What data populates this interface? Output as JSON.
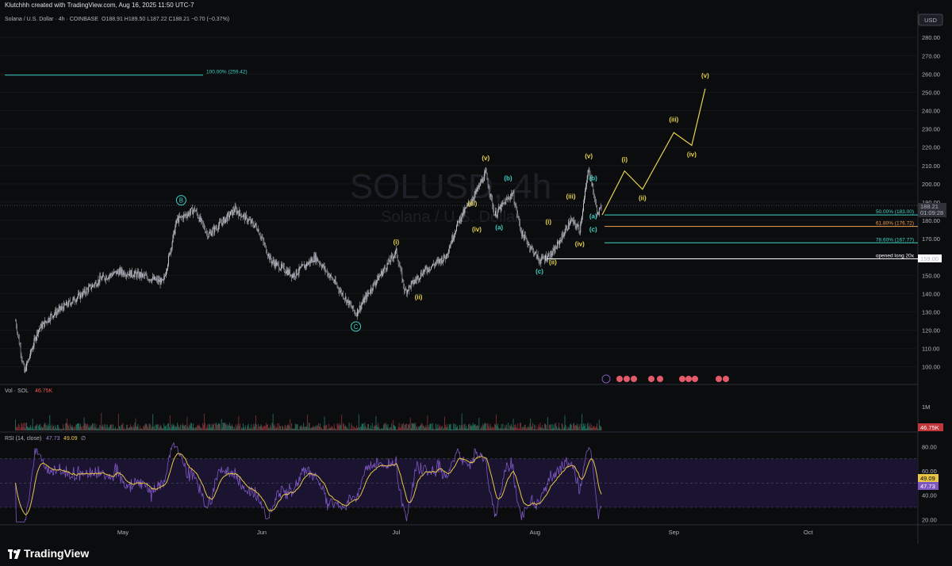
{
  "header": {
    "credit": "Klutchhh created with TradingView.com, Aug 16, 2025 11:50 UTC-7"
  },
  "main_chart": {
    "legend": "Solana / U.S. Dollar · 4h · COINBASE",
    "ohlc": "O188.91  H189.50  L187.22  C188.21  −0.70 (−0.37%)",
    "currency_label": "USD",
    "watermark_symbol": "SOLUSD, 4h",
    "watermark_name": "Solana / U.S. Dollar",
    "last_price": "188.21",
    "countdown": "01:09:28",
    "fib_100": "100.00% (259.42)",
    "fib_50": "50.00% (183.00)",
    "fib_618": "61.80% (176.72)",
    "fib_786": "78.60% (167.77)",
    "long_note": "opened long 20x",
    "long_price": "159.00"
  },
  "volume_pane": {
    "legend_name": "Vol · SOL",
    "legend_value": "46.75K",
    "scale_label": "1M",
    "last_value": "46.75K"
  },
  "rsi_pane": {
    "legend_name": "RSI (14, close)",
    "rsi_value": "47.73",
    "ma_value": "49.09",
    "extra": "∅",
    "ticks": [
      "80.00",
      "60.00",
      "40.00",
      "20.00"
    ],
    "last_ma": "49.09",
    "last_rsi": "47.73"
  },
  "time_axis": [
    "May",
    "Jun",
    "Jul",
    "Aug",
    "Sep",
    "Oct"
  ],
  "footer": {
    "brand": "TradingView"
  },
  "colors": {
    "bg": "#0b0c0e",
    "candle": "#d1d4dc",
    "wave_yellow": "#e8d44d",
    "wave_teal": "#3fd1c4",
    "fib_orange": "#f0a050",
    "rsi_line": "#7e57c2",
    "rsi_ma": "#e8c547"
  },
  "chart_data": {
    "type": "candlestick",
    "symbol": "SOLUSD",
    "interval": "4h",
    "price_axis": [
      280,
      270,
      260,
      250,
      240,
      230,
      220,
      210,
      200,
      190,
      180,
      170,
      160,
      150,
      140,
      130,
      120,
      110,
      100
    ],
    "price_path": [
      [
        "2025-04-07",
        125
      ],
      [
        "2025-04-09",
        97
      ],
      [
        "2025-04-12",
        120
      ],
      [
        "2025-04-15",
        128
      ],
      [
        "2025-04-22",
        140
      ],
      [
        "2025-04-26",
        148
      ],
      [
        "2025-04-30",
        152
      ],
      [
        "2025-05-05",
        150
      ],
      [
        "2025-05-10",
        146
      ],
      [
        "2025-05-13",
        180
      ],
      [
        "2025-05-17",
        186
      ],
      [
        "2025-05-20",
        172
      ],
      [
        "2025-05-24",
        181
      ],
      [
        "2025-05-26",
        186
      ],
      [
        "2025-05-31",
        176
      ],
      [
        "2025-06-03",
        158
      ],
      [
        "2025-06-08",
        150
      ],
      [
        "2025-06-13",
        160
      ],
      [
        "2025-06-17",
        147
      ],
      [
        "2025-06-22",
        129
      ],
      [
        "2025-06-26",
        145
      ],
      [
        "2025-07-01",
        163
      ],
      [
        "2025-07-03",
        141
      ],
      [
        "2025-07-07",
        152
      ],
      [
        "2025-07-12",
        160
      ],
      [
        "2025-07-15",
        180
      ],
      [
        "2025-07-19",
        196
      ],
      [
        "2025-07-21",
        206
      ],
      [
        "2025-07-23",
        183
      ],
      [
        "2025-07-27",
        195
      ],
      [
        "2025-07-29",
        173
      ],
      [
        "2025-08-02",
        158
      ],
      [
        "2025-08-05",
        162
      ],
      [
        "2025-08-09",
        180
      ],
      [
        "2025-08-11",
        175
      ],
      [
        "2025-08-12",
        192
      ],
      [
        "2025-08-13",
        209
      ],
      [
        "2025-08-15",
        183
      ],
      [
        "2025-08-16",
        188
      ]
    ],
    "projection": [
      [
        "2025-08-16",
        183
      ],
      [
        "2025-08-21",
        207
      ],
      [
        "2025-08-25",
        197
      ],
      [
        "2025-09-01",
        228
      ],
      [
        "2025-09-05",
        221
      ],
      [
        "2025-09-08",
        252
      ]
    ],
    "labels_yellow": [
      {
        "text": "(i)",
        "date": "2025-07-01",
        "price": 167
      },
      {
        "text": "(ii)",
        "date": "2025-07-06",
        "price": 137
      },
      {
        "text": "(iii)",
        "date": "2025-07-18",
        "price": 188
      },
      {
        "text": "(iv)",
        "date": "2025-07-19",
        "price": 174
      },
      {
        "text": "(v)",
        "date": "2025-07-21",
        "price": 213
      },
      {
        "text": "(i)",
        "date": "2025-08-04",
        "price": 178
      },
      {
        "text": "(ii)",
        "date": "2025-08-05",
        "price": 156
      },
      {
        "text": "(iii)",
        "date": "2025-08-09",
        "price": 192
      },
      {
        "text": "(iv)",
        "date": "2025-08-11",
        "price": 166
      },
      {
        "text": "(v)",
        "date": "2025-08-13",
        "price": 214
      },
      {
        "text": "(i)",
        "date": "2025-08-21",
        "price": 212
      },
      {
        "text": "(ii)",
        "date": "2025-08-25",
        "price": 191
      },
      {
        "text": "(iii)",
        "date": "2025-09-01",
        "price": 234
      },
      {
        "text": "(iv)",
        "date": "2025-09-05",
        "price": 215
      },
      {
        "text": "(v)",
        "date": "2025-09-08",
        "price": 258
      }
    ],
    "labels_teal": [
      {
        "text": "(b)",
        "date": "2025-07-26",
        "price": 202
      },
      {
        "text": "(a)",
        "date": "2025-07-24",
        "price": 175
      },
      {
        "text": "(c)",
        "date": "2025-08-02",
        "price": 151
      },
      {
        "text": "(b)",
        "date": "2025-08-14",
        "price": 202
      },
      {
        "text": "(a)",
        "date": "2025-08-14",
        "price": 181
      },
      {
        "text": "(c)",
        "date": "2025-08-14",
        "price": 174
      }
    ],
    "labels_circled": [
      {
        "text": "B",
        "date": "2025-05-14",
        "price": 191
      },
      {
        "text": "C",
        "date": "2025-06-22",
        "price": 122
      }
    ],
    "fib_levels": [
      {
        "label": "100.00% (259.42)",
        "price": 259.42,
        "color": "#3fd1c4"
      },
      {
        "label": "50.00% (183.00)",
        "price": 183.0,
        "color": "#3fd1c4"
      },
      {
        "label": "61.80% (176.72)",
        "price": 176.72,
        "color": "#f0a050"
      },
      {
        "label": "78.60% (167.77)",
        "price": 167.77,
        "color": "#3fd1c4"
      }
    ],
    "long_entry": {
      "label": "opened long 20x",
      "price": 159.0
    },
    "last_close": 188.21,
    "rsi": {
      "length": 14,
      "source": "close",
      "last": 47.73,
      "ma": 49.09,
      "bands": [
        70,
        30
      ],
      "range": [
        15,
        90
      ]
    },
    "volume_last": 46.75
  }
}
